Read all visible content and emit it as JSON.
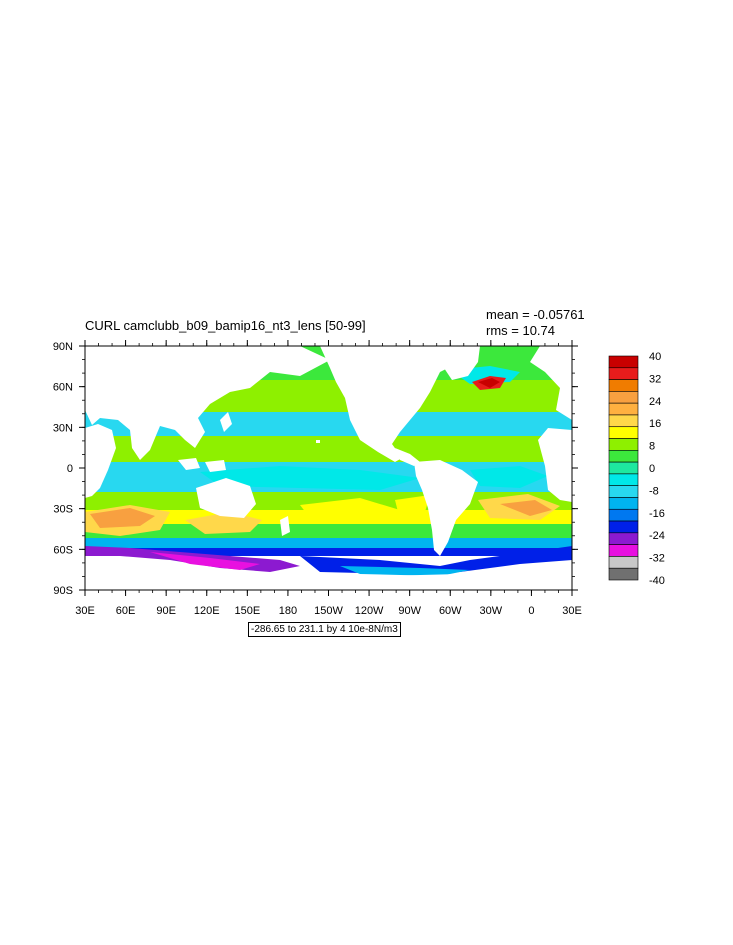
{
  "title": "CURL camclubb_b09_bamip16_nt3_lens [50-99]",
  "mean_text": "mean = -0.05761",
  "rms_text": "rms = 10.74",
  "range_text": "-286.65 to 231.1 by 4 10e-8N/m3",
  "map": {
    "lon_labels": [
      "30E",
      "60E",
      "90E",
      "120E",
      "150E",
      "180",
      "150W",
      "120W",
      "90W",
      "60W",
      "30W",
      "0",
      "30E"
    ],
    "lat_labels": [
      "90N",
      "60N",
      "30N",
      "0",
      "30S",
      "60S",
      "90S"
    ],
    "land_color": "#ffffff"
  },
  "colorbar": {
    "labels": [
      "40",
      "32",
      "24",
      "16",
      "8",
      "0",
      "-8",
      "-16",
      "-24",
      "-32",
      "-40"
    ],
    "colors_top_to_bottom": [
      "#c80000",
      "#e81c1c",
      "#f07c00",
      "#f8a040",
      "#ffb040",
      "#ffd84a",
      "#ffff00",
      "#8ef000",
      "#3ce83c",
      "#1ee8a0",
      "#00e8e8",
      "#28d8f0",
      "#00b4f0",
      "#0078f0",
      "#0020e8",
      "#8c1ad0",
      "#e810e0",
      "#c8c8c8",
      "#707070"
    ]
  }
}
